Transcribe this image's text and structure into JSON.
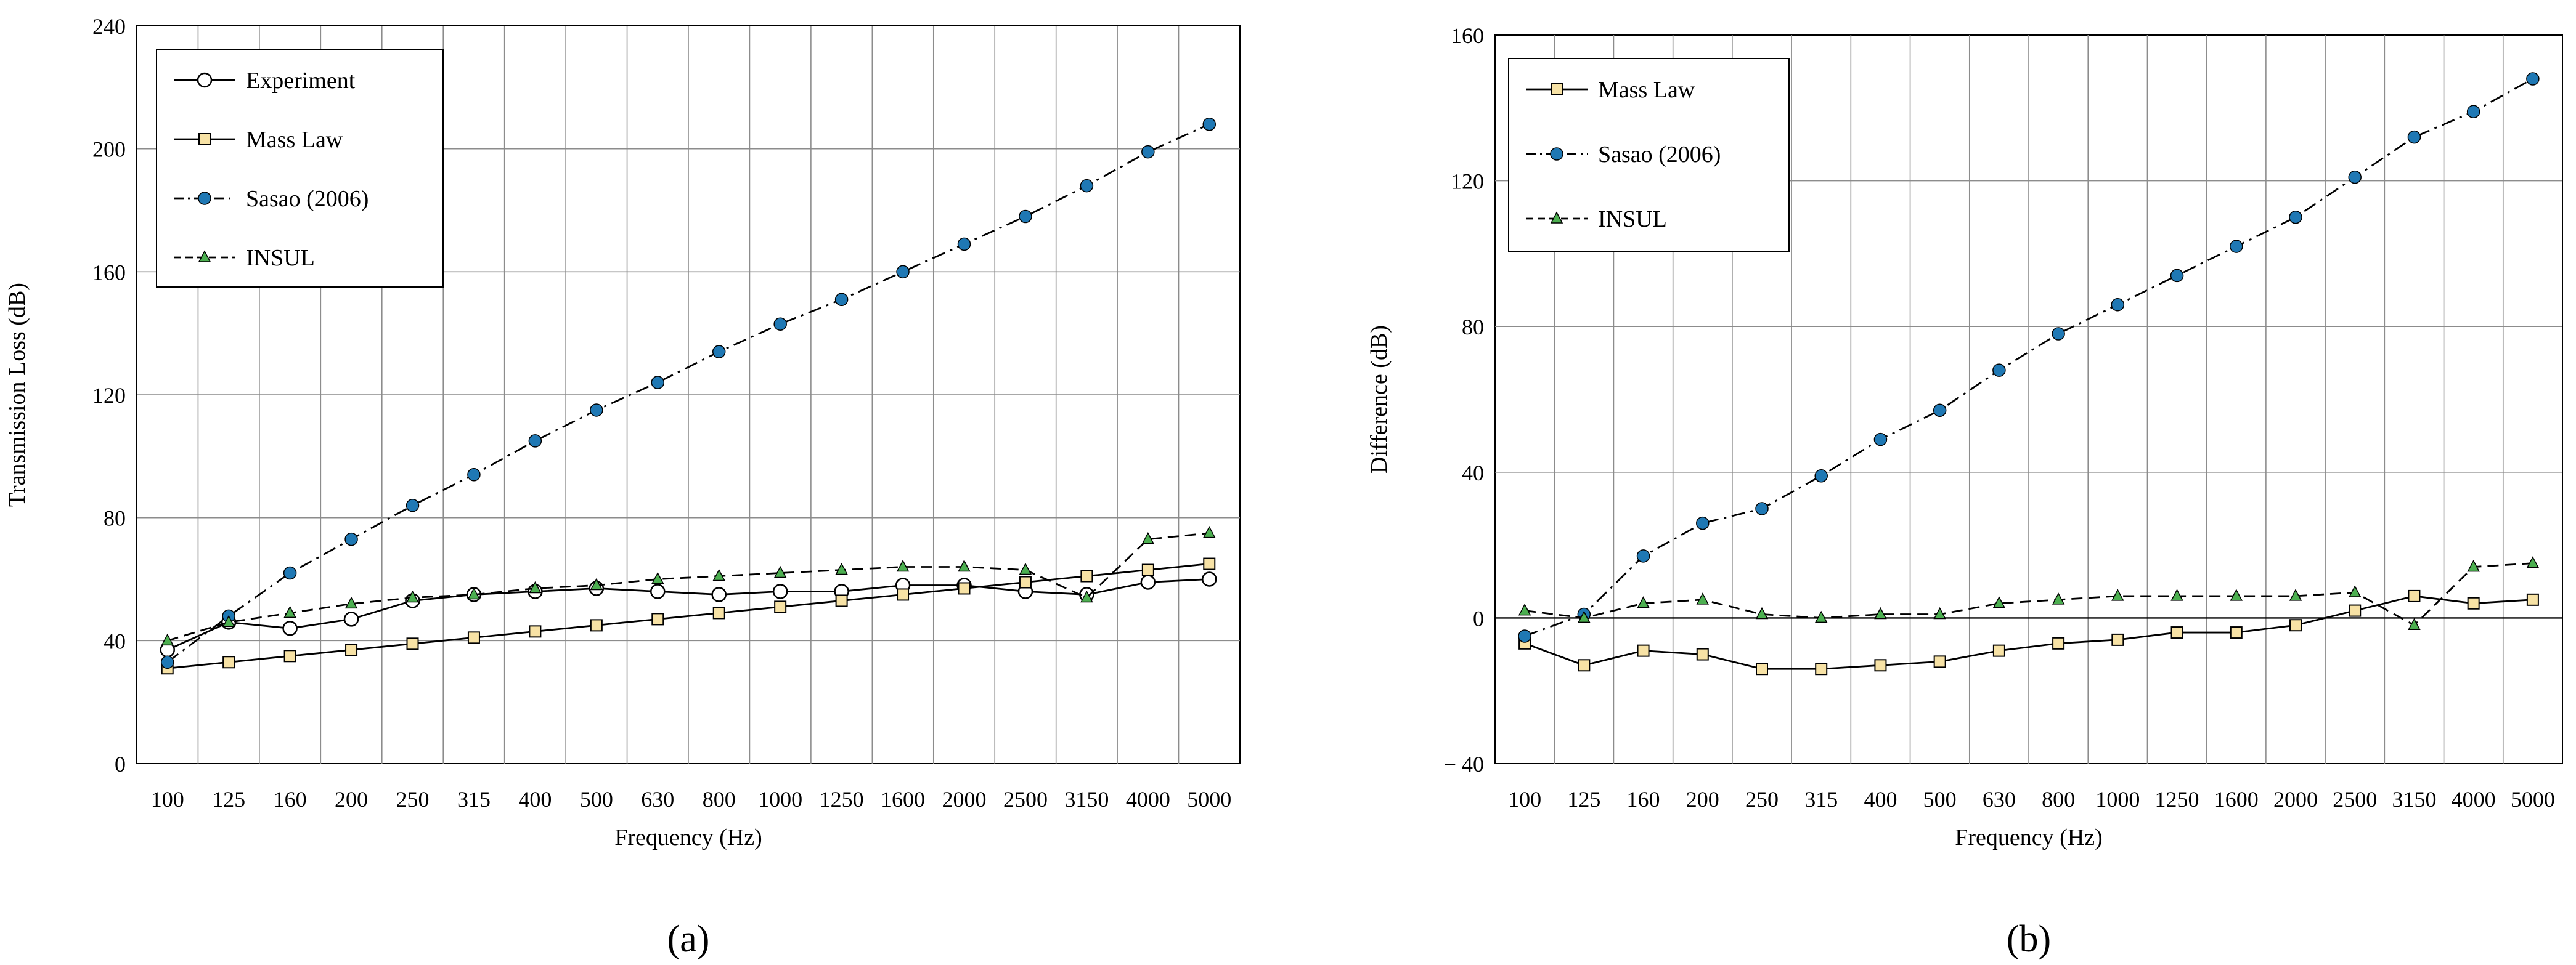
{
  "chart_data": [
    {
      "type": "line",
      "panel_label": "(a)",
      "xlabel": "Frequency (Hz)",
      "ylabel": "Transmission Loss (dB)",
      "categories": [
        "100",
        "125",
        "160",
        "200",
        "250",
        "315",
        "400",
        "500",
        "630",
        "800",
        "1000",
        "1250",
        "1600",
        "2000",
        "2500",
        "3150",
        "4000",
        "5000"
      ],
      "ylim": [
        0,
        240
      ],
      "yticks": [
        0,
        40,
        80,
        120,
        160,
        200,
        240
      ],
      "grid": true,
      "legend_position": "top-left",
      "series": [
        {
          "name": "Experiment",
          "line": "solid",
          "marker": "circle-open",
          "color": "#000000",
          "values": [
            37,
            46,
            44,
            47,
            53,
            55,
            56,
            57,
            56,
            55,
            56,
            56,
            58,
            58,
            56,
            55,
            59,
            60
          ]
        },
        {
          "name": "Mass Law",
          "line": "solid",
          "marker": "square",
          "color": "#f7e2a5",
          "values": [
            31,
            33,
            35,
            37,
            39,
            41,
            43,
            45,
            47,
            49,
            51,
            53,
            55,
            57,
            59,
            61,
            63,
            65
          ]
        },
        {
          "name": "Sasao (2006)",
          "line": "dashdot",
          "marker": "circle",
          "color": "#1f78b4",
          "values": [
            33,
            48,
            62,
            73,
            84,
            94,
            105,
            115,
            124,
            134,
            143,
            151,
            160,
            169,
            178,
            188,
            199,
            208
          ]
        },
        {
          "name": "INSUL",
          "line": "dashed",
          "marker": "triangle",
          "color": "#4caf50",
          "values": [
            40,
            46,
            49,
            52,
            54,
            55,
            57,
            58,
            60,
            61,
            62,
            63,
            64,
            64,
            63,
            54,
            73,
            75
          ]
        }
      ]
    },
    {
      "type": "line",
      "panel_label": "(b)",
      "xlabel": "Frequency (Hz)",
      "ylabel": "Difference (dB)",
      "categories": [
        "100",
        "125",
        "160",
        "200",
        "250",
        "315",
        "400",
        "500",
        "630",
        "800",
        "1000",
        "1250",
        "1600",
        "2000",
        "2500",
        "3150",
        "4000",
        "5000"
      ],
      "ylim": [
        -40,
        160
      ],
      "yticks": [
        -40,
        0,
        40,
        80,
        120,
        160
      ],
      "ytick_labels": [
        "− 40",
        "0",
        "40",
        "80",
        "120",
        "160"
      ],
      "grid": true,
      "legend_position": "top-left",
      "series": [
        {
          "name": "Mass Law",
          "line": "solid",
          "marker": "square",
          "color": "#f7e2a5",
          "values": [
            -7,
            -13,
            -9,
            -10,
            -14,
            -14,
            -13,
            -12,
            -9,
            -7,
            -6,
            -4,
            -4,
            -2,
            2,
            6,
            4,
            5
          ]
        },
        {
          "name": "Sasao (2006)",
          "line": "dashdot",
          "marker": "circle",
          "color": "#1f78b4",
          "values": [
            -5,
            1,
            17,
            26,
            30,
            39,
            49,
            57,
            68,
            78,
            86,
            94,
            102,
            110,
            121,
            132,
            139,
            148
          ]
        },
        {
          "name": "INSUL",
          "line": "dashed",
          "marker": "triangle",
          "color": "#4caf50",
          "values": [
            2,
            0,
            4,
            5,
            1,
            0,
            1,
            1,
            4,
            5,
            6,
            6,
            6,
            6,
            7,
            -2,
            14,
            15
          ]
        }
      ]
    }
  ]
}
